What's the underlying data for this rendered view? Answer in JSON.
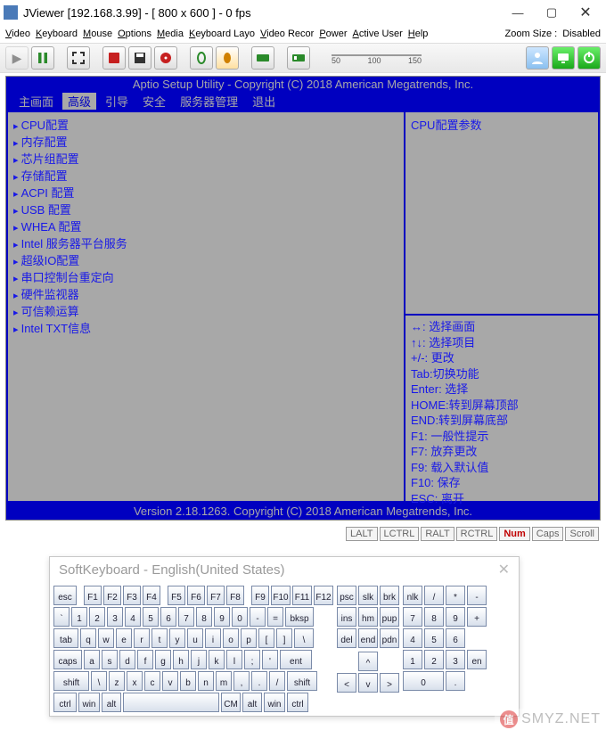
{
  "window": {
    "title": "JViewer [192.168.3.99] - [ 800 x 600 ] - 0 fps",
    "minimize": "—",
    "maximize": "▢",
    "close": "✕"
  },
  "menu": {
    "items": [
      "Video",
      "Keyboard",
      "Mouse",
      "Options",
      "Media",
      "Keyboard Layo",
      "Video Recor",
      "Power",
      "Active User",
      "Help"
    ],
    "zoom_label": "Zoom Size :",
    "zoom_value": "Disabled"
  },
  "slider": {
    "ticks": [
      "50",
      "100",
      "150"
    ]
  },
  "toolbar_icons": [
    "play-icon",
    "pause-icon",
    "fullscreen-icon",
    "record-icon",
    "save-icon",
    "cd-icon",
    "mouse-sync-icon",
    "mouse-icon",
    "keyboard-icon",
    "hotkey-icon",
    "fullkb-icon",
    "user-icon",
    "monitor-icon",
    "power-icon"
  ],
  "bios": {
    "header": "Aptio Setup Utility - Copyright (C) 2018 American Megatrends, Inc.",
    "tabs": [
      "主画面",
      "高级",
      "引导",
      "安全",
      "服务器管理",
      "退出"
    ],
    "active_tab": 1,
    "items": [
      "CPU配置",
      "内存配置",
      "芯片组配置",
      "存储配置",
      "ACPI 配置",
      "USB 配置",
      "WHEA 配置",
      "Intel 服务器平台服务",
      "超级IO配置",
      "串口控制台重定向",
      "硬件监视器",
      "可信赖运算",
      "Intel TXT信息"
    ],
    "help_title": "CPU配置参数",
    "help_lines": [
      "↔: 选择画面",
      "↑↓: 选择项目",
      "+/-: 更改",
      "Tab:切换功能",
      "Enter: 选择",
      "HOME:转到屏幕顶部",
      "END:转到屏幕底部",
      "F1: 一般性提示",
      "F7: 放弃更改",
      "F9: 载入默认值",
      "F10: 保存",
      "ESC: 离开"
    ],
    "footer": "Version 2.18.1263. Copyright (C) 2018 American Megatrends, Inc."
  },
  "status_keys": [
    {
      "label": "LALT",
      "on": false
    },
    {
      "label": "LCTRL",
      "on": false
    },
    {
      "label": "RALT",
      "on": false
    },
    {
      "label": "RCTRL",
      "on": false
    },
    {
      "label": "Num",
      "on": true
    },
    {
      "label": "Caps",
      "on": false
    },
    {
      "label": "Scroll",
      "on": false
    }
  ],
  "softkb": {
    "title": "SoftKeyboard - English(United States)",
    "close": "✕",
    "rows_main": [
      [
        [
          "esc",
          26
        ],
        [
          "",
          4
        ],
        [
          "F1",
          20
        ],
        [
          "F2",
          20
        ],
        [
          "F3",
          20
        ],
        [
          "F4",
          20
        ],
        [
          "",
          4
        ],
        [
          "F5",
          20
        ],
        [
          "F6",
          20
        ],
        [
          "F7",
          20
        ],
        [
          "F8",
          20
        ],
        [
          "",
          4
        ],
        [
          "F9",
          20
        ],
        [
          "F10",
          22
        ],
        [
          "F11",
          22
        ],
        [
          "F12",
          22
        ]
      ],
      [
        [
          "`",
          18
        ],
        [
          "1",
          18
        ],
        [
          "2",
          18
        ],
        [
          "3",
          18
        ],
        [
          "4",
          18
        ],
        [
          "5",
          18
        ],
        [
          "6",
          18
        ],
        [
          "7",
          18
        ],
        [
          "8",
          18
        ],
        [
          "9",
          18
        ],
        [
          "0",
          18
        ],
        [
          "-",
          18
        ],
        [
          "=",
          18
        ],
        [
          "bksp",
          32
        ]
      ],
      [
        [
          "tab",
          28
        ],
        [
          "q",
          18
        ],
        [
          "w",
          18
        ],
        [
          "e",
          18
        ],
        [
          "r",
          18
        ],
        [
          "t",
          18
        ],
        [
          "y",
          18
        ],
        [
          "u",
          18
        ],
        [
          "i",
          18
        ],
        [
          "o",
          18
        ],
        [
          "p",
          18
        ],
        [
          "[",
          18
        ],
        [
          "]",
          18
        ],
        [
          "\\",
          22
        ]
      ],
      [
        [
          "caps",
          32
        ],
        [
          "a",
          18
        ],
        [
          "s",
          18
        ],
        [
          "d",
          18
        ],
        [
          "f",
          18
        ],
        [
          "g",
          18
        ],
        [
          "h",
          18
        ],
        [
          "j",
          18
        ],
        [
          "k",
          18
        ],
        [
          "l",
          18
        ],
        [
          ";",
          18
        ],
        [
          "'",
          18
        ],
        [
          "ent",
          36
        ]
      ],
      [
        [
          "shift",
          40
        ],
        [
          "\\",
          18
        ],
        [
          "z",
          18
        ],
        [
          "x",
          18
        ],
        [
          "c",
          18
        ],
        [
          "v",
          18
        ],
        [
          "b",
          18
        ],
        [
          "n",
          18
        ],
        [
          "m",
          18
        ],
        [
          ",",
          18
        ],
        [
          ".",
          18
        ],
        [
          "/",
          18
        ],
        [
          "shift",
          34
        ]
      ],
      [
        [
          "ctrl",
          26
        ],
        [
          "win",
          24
        ],
        [
          "alt",
          22
        ],
        [
          "",
          108
        ],
        [
          "CM",
          22
        ],
        [
          "alt",
          22
        ],
        [
          "win",
          24
        ],
        [
          "ctrl",
          24
        ]
      ]
    ],
    "rows_nav": [
      [
        [
          "psc",
          22
        ],
        [
          "slk",
          22
        ],
        [
          "brk",
          22
        ]
      ],
      [
        [
          "ins",
          22
        ],
        [
          "hm",
          22
        ],
        [
          "pup",
          22
        ]
      ],
      [
        [
          "del",
          22
        ],
        [
          "end",
          22
        ],
        [
          "pdn",
          22
        ]
      ],
      [],
      [
        [
          "",
          22
        ],
        [
          "^",
          22
        ],
        [
          "",
          22
        ]
      ],
      [
        [
          "<",
          22
        ],
        [
          "v",
          22
        ],
        [
          ">",
          22
        ]
      ]
    ],
    "rows_num": [
      [
        [
          "nlk",
          22
        ],
        [
          "/",
          22
        ],
        [
          "*",
          22
        ],
        [
          "-",
          22
        ]
      ],
      [
        [
          "7",
          22
        ],
        [
          "8",
          22
        ],
        [
          "9",
          22
        ],
        [
          "+",
          22
        ]
      ],
      [
        [
          "4",
          22
        ],
        [
          "5",
          22
        ],
        [
          "6",
          22
        ],
        [
          "",
          22
        ]
      ],
      [
        [
          "1",
          22
        ],
        [
          "2",
          22
        ],
        [
          "3",
          22
        ],
        [
          "en",
          22
        ]
      ],
      [
        [
          "0",
          46
        ],
        [
          ".",
          22
        ],
        [
          "",
          22
        ]
      ]
    ]
  },
  "watermark": "SMYZ.NET",
  "colors": {
    "bios_bg": "#a8a8a8",
    "bios_blue": "#0000c0",
    "bios_text": "#1818e8"
  }
}
